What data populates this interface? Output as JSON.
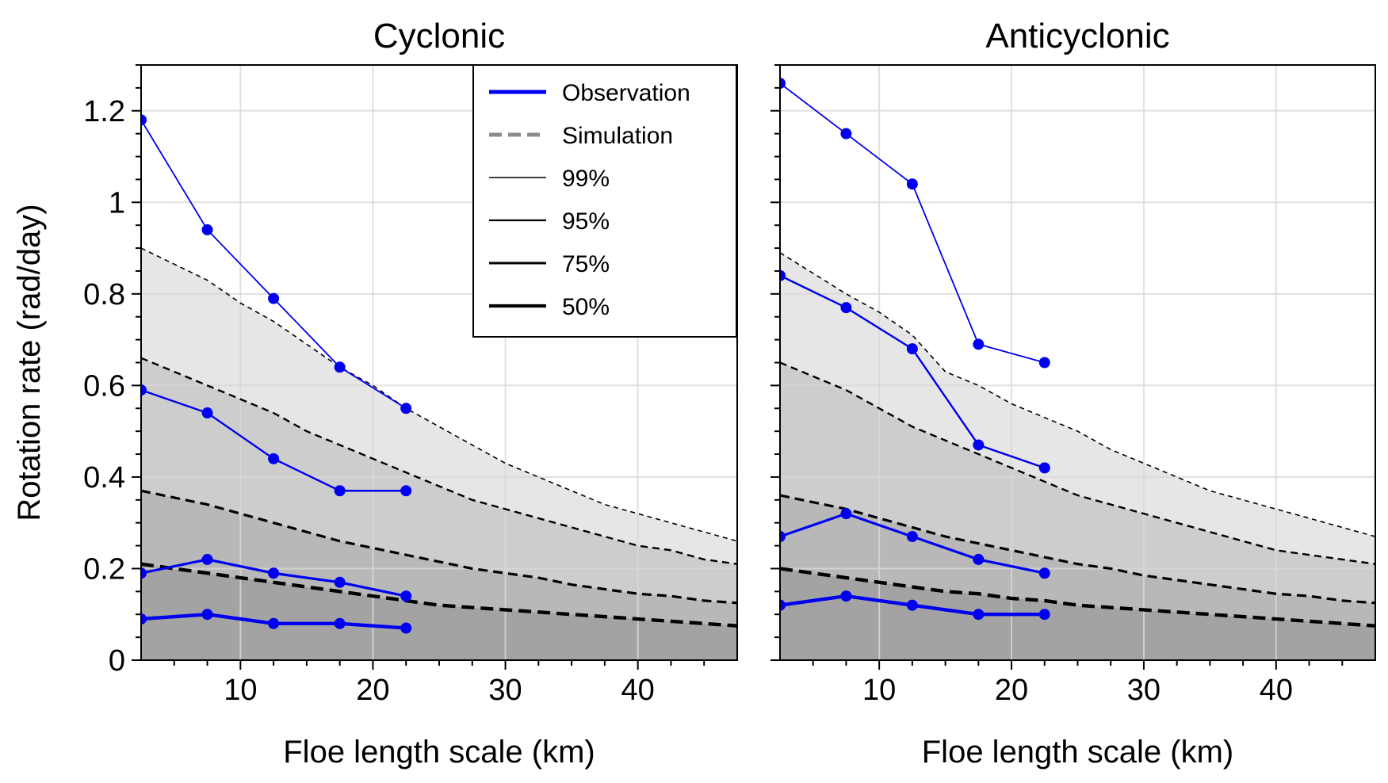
{
  "chart_data": [
    {
      "type": "line",
      "title": "Cyclonic",
      "xlabel": "Floe length scale (km)",
      "ylabel": "Rotation rate (rad/day)",
      "xlim": [
        2.5,
        47.5
      ],
      "ylim": [
        0,
        1.3
      ],
      "xticks": [
        10,
        20,
        30,
        40
      ],
      "xtick_labels": [
        "10",
        "20",
        "30",
        "40"
      ],
      "yticks": [
        0,
        0.2,
        0.4,
        0.6,
        0.8,
        1.0,
        1.2
      ],
      "ytick_labels": [
        "0",
        "0.2",
        "0.4",
        "0.6",
        "0.8",
        "1",
        "1.2"
      ],
      "grid": true,
      "simulation": {
        "x": [
          2.5,
          7.5,
          10,
          12.5,
          15,
          17.5,
          20,
          22.5,
          25,
          27.5,
          30,
          32.5,
          35,
          37.5,
          40,
          42.5,
          45,
          47.5
        ],
        "series": [
          {
            "name": "99%",
            "values": [
              0.9,
              0.83,
              0.78,
              0.74,
              0.69,
              0.64,
              0.6,
              0.55,
              0.51,
              0.47,
              0.43,
              0.4,
              0.37,
              0.34,
              0.32,
              0.3,
              0.28,
              0.26
            ]
          },
          {
            "name": "95%",
            "values": [
              0.66,
              0.6,
              0.57,
              0.54,
              0.5,
              0.47,
              0.44,
              0.41,
              0.38,
              0.35,
              0.33,
              0.31,
              0.29,
              0.27,
              0.25,
              0.24,
              0.22,
              0.21
            ]
          },
          {
            "name": "75%",
            "values": [
              0.37,
              0.34,
              0.32,
              0.3,
              0.28,
              0.26,
              0.245,
              0.23,
              0.215,
              0.2,
              0.19,
              0.18,
              0.165,
              0.155,
              0.145,
              0.14,
              0.13,
              0.125
            ]
          },
          {
            "name": "50%",
            "values": [
              0.21,
              0.19,
              0.18,
              0.17,
              0.16,
              0.15,
              0.14,
              0.13,
              0.12,
              0.115,
              0.11,
              0.105,
              0.1,
              0.095,
              0.09,
              0.085,
              0.08,
              0.075
            ]
          }
        ]
      },
      "observation": {
        "x": [
          2.5,
          7.5,
          12.5,
          17.5,
          22.5
        ],
        "series": [
          {
            "name": "99%",
            "values": [
              1.18,
              0.94,
              0.79,
              0.64,
              0.55
            ]
          },
          {
            "name": "95%",
            "values": [
              0.59,
              0.54,
              0.44,
              0.37,
              0.37
            ]
          },
          {
            "name": "75%",
            "values": [
              0.19,
              0.22,
              0.19,
              0.17,
              0.14
            ]
          },
          {
            "name": "50%",
            "values": [
              0.09,
              0.1,
              0.08,
              0.08,
              0.07
            ]
          }
        ]
      },
      "legend": {
        "position": "top-right",
        "entries": [
          {
            "label": "Observation",
            "style": "observation"
          },
          {
            "label": "Simulation",
            "style": "simulation"
          },
          {
            "label": "99%",
            "style": "p99"
          },
          {
            "label": "95%",
            "style": "p95"
          },
          {
            "label": "75%",
            "style": "p75"
          },
          {
            "label": "50%",
            "style": "p50"
          }
        ]
      }
    },
    {
      "type": "line",
      "title": "Anticyclonic",
      "xlabel": "Floe length scale (km)",
      "ylabel": "",
      "xlim": [
        2.5,
        47.5
      ],
      "ylim": [
        0,
        1.3
      ],
      "xticks": [
        10,
        20,
        30,
        40
      ],
      "xtick_labels": [
        "10",
        "20",
        "30",
        "40"
      ],
      "yticks": [
        0,
        0.2,
        0.4,
        0.6,
        0.8,
        1.0,
        1.2
      ],
      "ytick_labels": [],
      "grid": true,
      "simulation": {
        "x": [
          2.5,
          7.5,
          10,
          12.5,
          15,
          17.5,
          20,
          22.5,
          25,
          27.5,
          30,
          32.5,
          35,
          37.5,
          40,
          42.5,
          45,
          47.5
        ],
        "series": [
          {
            "name": "99%",
            "values": [
              0.89,
              0.8,
              0.76,
              0.71,
              0.63,
              0.6,
              0.56,
              0.53,
              0.5,
              0.46,
              0.43,
              0.4,
              0.37,
              0.35,
              0.33,
              0.31,
              0.29,
              0.27
            ]
          },
          {
            "name": "95%",
            "values": [
              0.65,
              0.59,
              0.55,
              0.51,
              0.48,
              0.45,
              0.42,
              0.39,
              0.36,
              0.34,
              0.32,
              0.3,
              0.28,
              0.26,
              0.24,
              0.23,
              0.22,
              0.21
            ]
          },
          {
            "name": "75%",
            "values": [
              0.36,
              0.33,
              0.31,
              0.29,
              0.27,
              0.255,
              0.24,
              0.225,
              0.21,
              0.2,
              0.185,
              0.175,
              0.165,
              0.155,
              0.145,
              0.14,
              0.13,
              0.125
            ]
          },
          {
            "name": "50%",
            "values": [
              0.2,
              0.18,
              0.17,
              0.16,
              0.15,
              0.145,
              0.135,
              0.13,
              0.12,
              0.115,
              0.11,
              0.105,
              0.1,
              0.095,
              0.09,
              0.085,
              0.08,
              0.075
            ]
          }
        ]
      },
      "observation": {
        "x": [
          2.5,
          7.5,
          12.5,
          17.5,
          22.5
        ],
        "series": [
          {
            "name": "99%",
            "values": [
              1.26,
              1.15,
              1.04,
              0.69,
              0.65
            ]
          },
          {
            "name": "95%",
            "values": [
              0.84,
              0.77,
              0.68,
              0.47,
              0.42
            ]
          },
          {
            "name": "75%",
            "values": [
              0.27,
              0.32,
              0.27,
              0.22,
              0.19
            ]
          },
          {
            "name": "50%",
            "values": [
              0.12,
              0.14,
              0.12,
              0.1,
              0.1
            ]
          }
        ]
      }
    }
  ],
  "colors": {
    "observation": "#0000ee",
    "simulation_legend": "#8c8c8c",
    "simulation_lines": "#000000",
    "fill_above_99": "#ffffff",
    "fill_95_99": "#e6e6e6",
    "fill_75_95": "#cdcdcd",
    "fill_50_75": "#b8b8b8",
    "fill_below_50": "#a3a3a3",
    "grid": "#d8d8d8"
  }
}
